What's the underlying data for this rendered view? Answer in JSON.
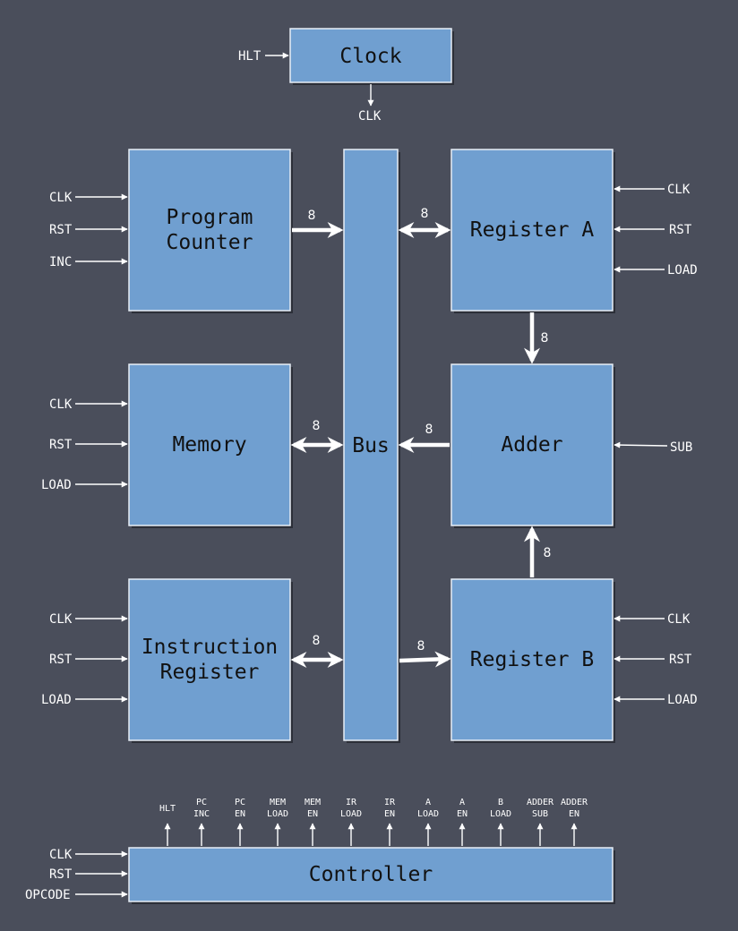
{
  "blocks": {
    "clock": "Clock",
    "pc": [
      "Program",
      "Counter"
    ],
    "bus": "Bus",
    "reg_a": "Register A",
    "memory": "Memory",
    "adder": "Adder",
    "ir": [
      "Instruction",
      "Register"
    ],
    "reg_b": "Register B",
    "controller": "Controller"
  },
  "signals": {
    "clock_in": "HLT",
    "clock_out": "CLK",
    "pc": [
      "CLK",
      "RST",
      "INC"
    ],
    "memory": [
      "CLK",
      "RST",
      "LOAD"
    ],
    "ir": [
      "CLK",
      "RST",
      "LOAD"
    ],
    "reg_a": [
      "CLK",
      "RST",
      "LOAD"
    ],
    "adder": [
      "SUB"
    ],
    "reg_b": [
      "CLK",
      "RST",
      "LOAD"
    ],
    "controller_in": [
      "CLK",
      "RST",
      "OPCODE"
    ]
  },
  "controller_outputs": [
    [
      "HLT"
    ],
    [
      "PC",
      "INC"
    ],
    [
      "PC",
      "EN"
    ],
    [
      "MEM",
      "LOAD"
    ],
    [
      "MEM",
      "EN"
    ],
    [
      "IR",
      "LOAD"
    ],
    [
      "IR",
      "EN"
    ],
    [
      "A",
      "LOAD"
    ],
    [
      "A",
      "EN"
    ],
    [
      "B",
      "LOAD"
    ],
    [
      "ADDER",
      "SUB"
    ],
    [
      "ADDER",
      "EN"
    ]
  ],
  "bus_width": "8"
}
